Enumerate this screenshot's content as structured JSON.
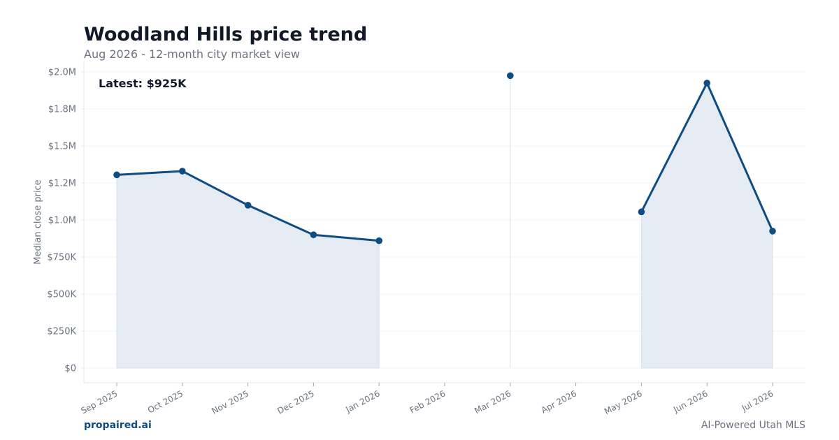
{
  "header": {
    "title": "Woodland Hills price trend",
    "subtitle": "Aug 2026 - 12-month city market view"
  },
  "footer": {
    "brand": "propaired.ai",
    "tagline": "AI-Powered Utah MLS"
  },
  "colors": {
    "line": "#0f4c81",
    "area": "#e5ebf3",
    "grid": "#f1f3f5",
    "axis": "#e5e7eb"
  },
  "chart_data": {
    "type": "line",
    "title": "Woodland Hills price trend",
    "subtitle": "Aug 2026 - 12-month city market view",
    "xlabel": "",
    "ylabel": "Median close price",
    "annotation": "Latest: $925K",
    "ylim": [
      0,
      2000000
    ],
    "yticks": [
      0,
      250000,
      500000,
      750000,
      1000000,
      1250000,
      1500000,
      1750000,
      2000000
    ],
    "ytick_labels": [
      "$0",
      "$250K",
      "$500K",
      "$750K",
      "$1.0M",
      "$1.2M",
      "$1.5M",
      "$1.8M",
      "$2.0M"
    ],
    "categories": [
      "Sep 2025",
      "Oct 2025",
      "Nov 2025",
      "Dec 2025",
      "Jan 2026",
      "Feb 2026",
      "Mar 2026",
      "Apr 2026",
      "May 2026",
      "Jun 2026",
      "Jul 2026"
    ],
    "values": [
      1305000,
      1330000,
      1100000,
      900000,
      860000,
      null,
      1975000,
      null,
      1055000,
      1925000,
      925000
    ],
    "grid": true,
    "area_fill": true
  }
}
